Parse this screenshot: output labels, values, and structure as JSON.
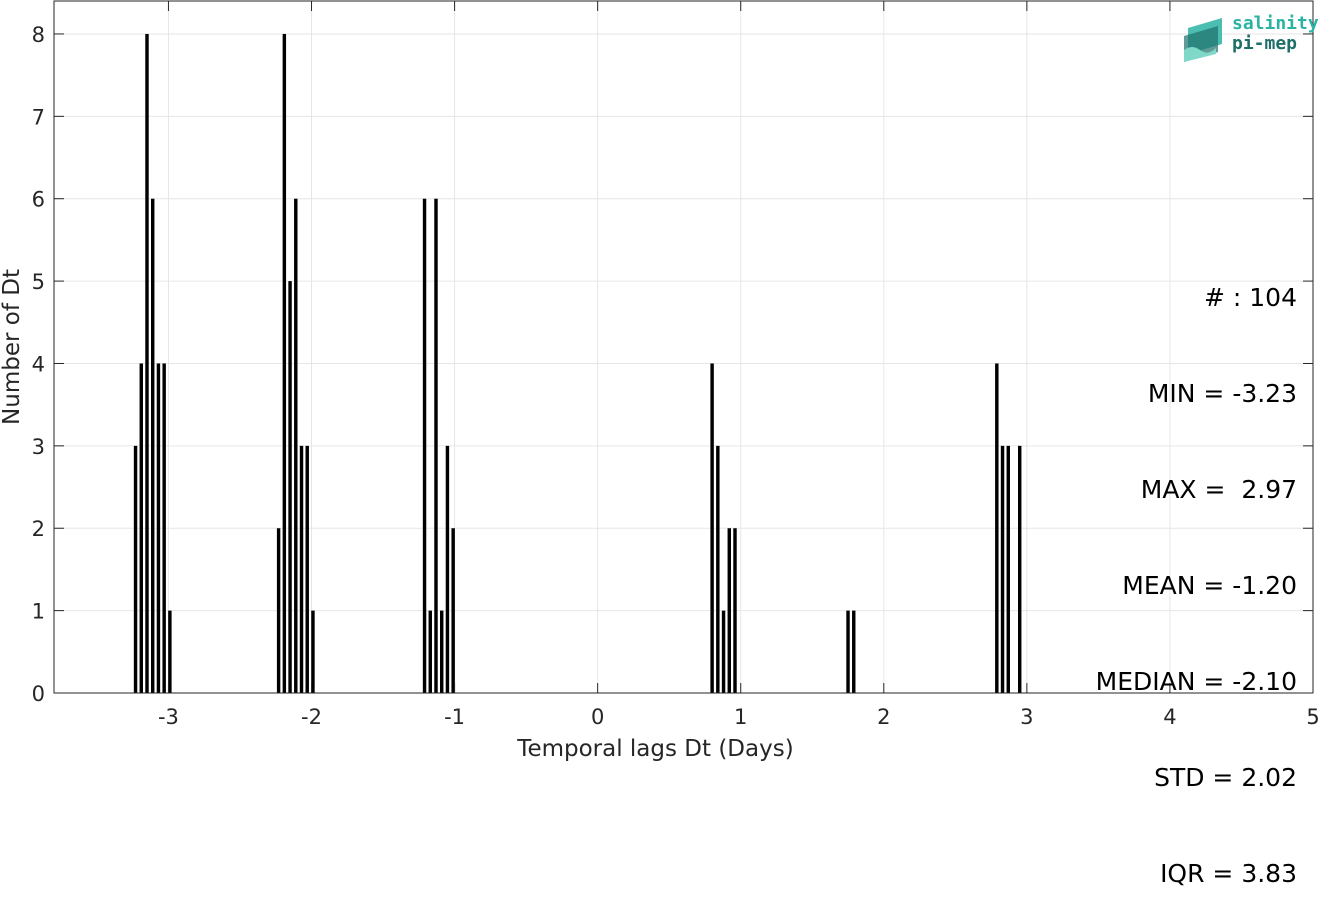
{
  "chart_data": {
    "type": "bar",
    "xlabel": "Temporal lags Dt (Days)",
    "ylabel": "Number of Dt",
    "xlim": [
      -3.8,
      5
    ],
    "ylim": [
      0,
      8.4
    ],
    "xticks": [
      -3,
      -2,
      -1,
      0,
      1,
      2,
      3,
      4,
      5
    ],
    "yticks": [
      0,
      1,
      2,
      3,
      4,
      5,
      6,
      7,
      8
    ],
    "grid": true,
    "bar_color": "#000000",
    "bin_width": 0.04,
    "bins": [
      {
        "x": -3.23,
        "count": 3
      },
      {
        "x": -3.19,
        "count": 4
      },
      {
        "x": -3.15,
        "count": 8
      },
      {
        "x": -3.11,
        "count": 6
      },
      {
        "x": -3.07,
        "count": 4
      },
      {
        "x": -3.03,
        "count": 4
      },
      {
        "x": -2.99,
        "count": 1
      },
      {
        "x": -2.23,
        "count": 2
      },
      {
        "x": -2.19,
        "count": 8
      },
      {
        "x": -2.15,
        "count": 5
      },
      {
        "x": -2.11,
        "count": 6
      },
      {
        "x": -2.07,
        "count": 3
      },
      {
        "x": -2.03,
        "count": 3
      },
      {
        "x": -1.99,
        "count": 1
      },
      {
        "x": -1.21,
        "count": 6
      },
      {
        "x": -1.17,
        "count": 1
      },
      {
        "x": -1.13,
        "count": 6
      },
      {
        "x": -1.09,
        "count": 1
      },
      {
        "x": -1.05,
        "count": 3
      },
      {
        "x": -1.01,
        "count": 2
      },
      {
        "x": 0.8,
        "count": 4
      },
      {
        "x": 0.84,
        "count": 3
      },
      {
        "x": 0.88,
        "count": 1
      },
      {
        "x": 0.92,
        "count": 2
      },
      {
        "x": 0.96,
        "count": 2
      },
      {
        "x": 1.75,
        "count": 1
      },
      {
        "x": 1.79,
        "count": 1
      },
      {
        "x": 2.79,
        "count": 4
      },
      {
        "x": 2.83,
        "count": 3
      },
      {
        "x": 2.87,
        "count": 3
      },
      {
        "x": 2.95,
        "count": 3
      }
    ]
  },
  "stats": [
    "# : 104",
    "MIN = -3.23",
    "MAX =  2.97",
    "MEAN = -1.20",
    "MEDIAN = -2.10",
    "STD = 2.02",
    "IQR = 3.83"
  ],
  "logo": {
    "line1": "salinity",
    "line2": "pi-mep",
    "colors": [
      "#2bb3a3",
      "#1e6f6a",
      "#7fd8c8"
    ]
  }
}
